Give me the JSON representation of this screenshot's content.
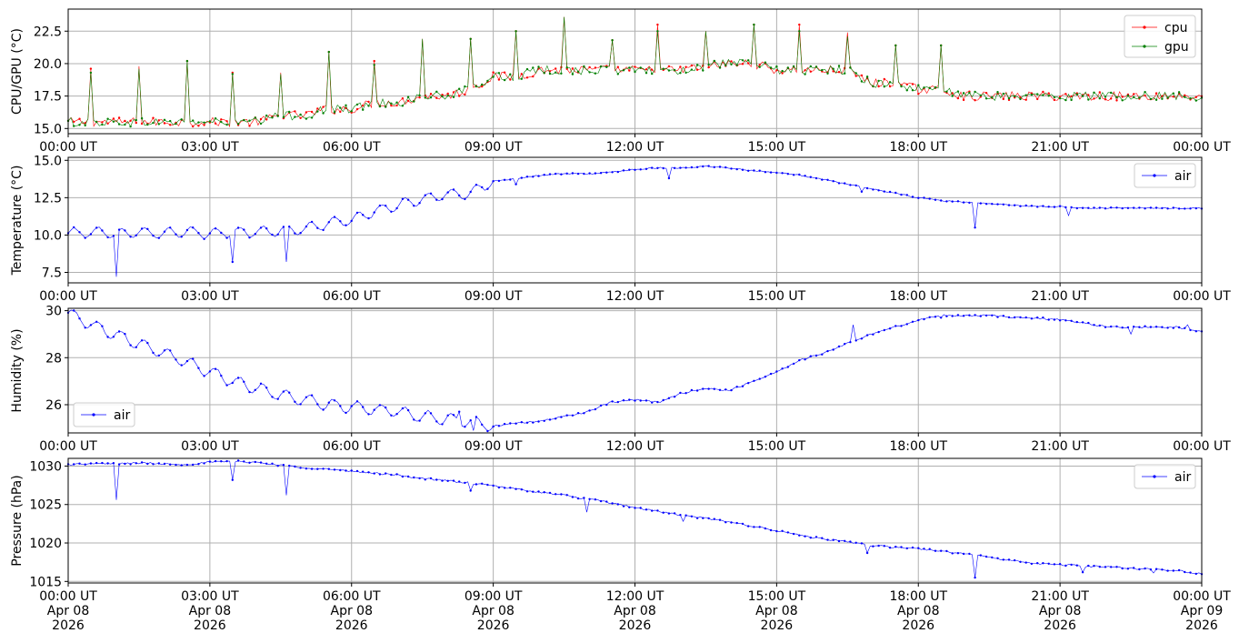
{
  "chart_data": [
    {
      "type": "line",
      "ylabel": "CPU/GPU (°C)",
      "xlim": [
        0,
        24
      ],
      "ylim": [
        14.6,
        24.2
      ],
      "yticks": [
        15.0,
        17.5,
        20.0,
        22.5
      ],
      "ytick_labels": [
        "15.0",
        "17.5",
        "20.0",
        "22.5"
      ],
      "xtick_labels": [
        "00:00 UT",
        "03:00 UT",
        "06:00 UT",
        "09:00 UT",
        "12:00 UT",
        "15:00 UT",
        "18:00 UT",
        "21:00 UT",
        "00:00 UT"
      ],
      "grid": true,
      "legend_position": "upper right",
      "series": [
        {
          "name": "cpu",
          "color": "#ff0000",
          "x": [
            0,
            0.5,
            1,
            1.5,
            2,
            2.5,
            3,
            3.5,
            4,
            4.5,
            5,
            5.5,
            6,
            6.5,
            7,
            7.5,
            8,
            8.5,
            9,
            9.5,
            10,
            10.5,
            11,
            11.5,
            12,
            12.5,
            13,
            13.5,
            14,
            14.5,
            15,
            15.5,
            16,
            16.5,
            17,
            17.5,
            18,
            18.5,
            19,
            19.5,
            20,
            20.5,
            21,
            21.5,
            22,
            22.5,
            23,
            23.5,
            24
          ],
          "y": [
            15.5,
            15.5,
            15.5,
            15.5,
            15.5,
            15.5,
            15.5,
            15.5,
            15.5,
            16.0,
            16.0,
            16.5,
            16.5,
            17.0,
            17.0,
            17.5,
            17.5,
            18.0,
            19.0,
            19.0,
            19.5,
            19.5,
            19.5,
            19.5,
            19.5,
            19.5,
            19.5,
            19.8,
            20.0,
            20.0,
            19.5,
            19.5,
            19.5,
            19.5,
            18.5,
            18.5,
            18.0,
            18.0,
            17.5,
            17.5,
            17.5,
            17.5,
            17.5,
            17.5,
            17.5,
            17.5,
            17.5,
            17.5,
            17.5
          ],
          "spikes": [
            [
              0.5,
              19.6
            ],
            [
              1.5,
              19.8
            ],
            [
              2.5,
              20.2
            ],
            [
              3.5,
              19.3
            ],
            [
              4.5,
              19.3
            ],
            [
              5.5,
              20.9
            ],
            [
              6.5,
              20.2
            ],
            [
              7.5,
              21.9
            ],
            [
              8.5,
              21.9
            ],
            [
              9.5,
              22.5
            ],
            [
              10.5,
              23.6
            ],
            [
              11.5,
              21.8
            ],
            [
              12.5,
              23.0
            ],
            [
              13.5,
              22.5
            ],
            [
              14.5,
              23.0
            ],
            [
              15.5,
              23.0
            ],
            [
              16.5,
              22.4
            ],
            [
              17.5,
              21.4
            ],
            [
              18.5,
              21.4
            ]
          ]
        },
        {
          "name": "gpu",
          "color": "#008000",
          "x": [
            0,
            0.5,
            1,
            1.5,
            2,
            2.5,
            3,
            3.5,
            4,
            4.5,
            5,
            5.5,
            6,
            6.5,
            7,
            7.5,
            8,
            8.5,
            9,
            9.5,
            10,
            10.5,
            11,
            11.5,
            12,
            12.5,
            13,
            13.5,
            14,
            14.5,
            15,
            15.5,
            16,
            16.5,
            17,
            17.5,
            18,
            18.5,
            19,
            19.5,
            20,
            20.5,
            21,
            21.5,
            22,
            22.5,
            23,
            23.5,
            24
          ],
          "y": [
            15.5,
            15.5,
            15.5,
            15.5,
            15.5,
            15.5,
            15.5,
            15.5,
            15.5,
            16.0,
            16.0,
            16.5,
            16.5,
            17.0,
            17.0,
            17.5,
            17.5,
            18.0,
            19.0,
            19.0,
            19.5,
            19.5,
            19.5,
            19.5,
            19.5,
            19.5,
            19.5,
            19.8,
            20.0,
            20.0,
            19.5,
            19.5,
            19.5,
            19.5,
            18.5,
            18.5,
            18.0,
            18.0,
            17.5,
            17.5,
            17.5,
            17.5,
            17.5,
            17.5,
            17.5,
            17.5,
            17.5,
            17.5,
            17.5
          ],
          "spikes": [
            [
              0.5,
              19.3
            ],
            [
              1.5,
              19.6
            ],
            [
              2.5,
              20.2
            ],
            [
              3.5,
              19.2
            ],
            [
              4.5,
              19.2
            ],
            [
              5.5,
              20.9
            ],
            [
              6.5,
              19.9
            ],
            [
              7.5,
              21.9
            ],
            [
              8.5,
              21.9
            ],
            [
              9.5,
              22.5
            ],
            [
              10.5,
              23.6
            ],
            [
              11.5,
              21.8
            ],
            [
              12.5,
              22.5
            ],
            [
              13.5,
              22.5
            ],
            [
              14.5,
              23.0
            ],
            [
              15.5,
              22.5
            ],
            [
              16.5,
              22.1
            ],
            [
              17.5,
              21.4
            ],
            [
              18.5,
              21.4
            ]
          ]
        }
      ]
    },
    {
      "type": "line",
      "ylabel": "Temperature (°C)",
      "xlim": [
        0,
        24
      ],
      "ylim": [
        6.8,
        15.2
      ],
      "yticks": [
        7.5,
        10.0,
        12.5,
        15.0
      ],
      "ytick_labels": [
        "7.5",
        "10.0",
        "12.5",
        "15.0"
      ],
      "xtick_labels": [
        "00:00 UT",
        "03:00 UT",
        "06:00 UT",
        "09:00 UT",
        "12:00 UT",
        "15:00 UT",
        "18:00 UT",
        "21:00 UT",
        "00:00 UT"
      ],
      "grid": true,
      "legend_position": "upper right",
      "series": [
        {
          "name": "air",
          "color": "#0000ff",
          "x": [
            0,
            0.5,
            1,
            1.5,
            2,
            2.5,
            3,
            3.5,
            4,
            4.5,
            5,
            5.5,
            6,
            6.5,
            7,
            7.5,
            8,
            8.5,
            9,
            9.5,
            10,
            10.5,
            11,
            11.5,
            12,
            12.5,
            13,
            13.5,
            14,
            14.5,
            15,
            15.5,
            16,
            16.5,
            17,
            17.5,
            18,
            18.5,
            19,
            19.5,
            20,
            20.5,
            21,
            21.5,
            22,
            22.5,
            23,
            23.5,
            24
          ],
          "y": [
            10.1,
            10.2,
            10.1,
            10.2,
            10.1,
            10.2,
            10.1,
            10.2,
            10.2,
            10.3,
            10.4,
            10.8,
            11.0,
            11.6,
            12.0,
            12.4,
            12.7,
            12.8,
            13.6,
            13.8,
            14.0,
            14.1,
            14.1,
            14.2,
            14.4,
            14.5,
            14.5,
            14.6,
            14.5,
            14.3,
            14.2,
            14.0,
            13.7,
            13.4,
            13.1,
            12.8,
            12.5,
            12.3,
            12.2,
            12.1,
            12.0,
            11.9,
            11.9,
            11.8,
            11.8,
            11.8,
            11.8,
            11.8,
            11.8
          ],
          "spikes": [
            [
              1.0,
              7.2
            ],
            [
              3.5,
              8.2
            ],
            [
              4.6,
              8.2
            ],
            [
              9.5,
              13.4
            ],
            [
              12.7,
              13.8
            ],
            [
              16.8,
              12.9
            ],
            [
              19.2,
              10.5
            ],
            [
              21.2,
              11.3
            ]
          ]
        }
      ]
    },
    {
      "type": "line",
      "ylabel": "Humidity (%)",
      "xlim": [
        0,
        24
      ],
      "ylim": [
        24.8,
        30.1
      ],
      "yticks": [
        26,
        28,
        30
      ],
      "ytick_labels": [
        "26",
        "28",
        "30"
      ],
      "xtick_labels": [
        "00:00 UT",
        "03:00 UT",
        "06:00 UT",
        "09:00 UT",
        "12:00 UT",
        "15:00 UT",
        "18:00 UT",
        "21:00 UT",
        "00:00 UT"
      ],
      "grid": true,
      "legend_position": "lower left",
      "series": [
        {
          "name": "air",
          "color": "#0000ff",
          "x": [
            0,
            0.5,
            1,
            1.5,
            2,
            2.5,
            3,
            3.5,
            4,
            4.5,
            5,
            5.5,
            6,
            6.5,
            7,
            7.5,
            8,
            8.5,
            9,
            9.5,
            10,
            10.5,
            11,
            11.5,
            12,
            12.5,
            13,
            13.5,
            14,
            14.5,
            15,
            15.5,
            16,
            16.5,
            17,
            17.5,
            18,
            18.5,
            19,
            19.5,
            20,
            20.5,
            21,
            21.5,
            22,
            22.5,
            23,
            23.5,
            24
          ],
          "y": [
            29.9,
            29.4,
            29.0,
            28.6,
            28.2,
            27.8,
            27.4,
            27.0,
            26.7,
            26.4,
            26.2,
            26.0,
            25.9,
            25.8,
            25.7,
            25.5,
            25.4,
            25.3,
            25.1,
            25.2,
            25.3,
            25.5,
            25.7,
            26.1,
            26.2,
            26.1,
            26.5,
            26.7,
            26.6,
            27.0,
            27.4,
            27.9,
            28.2,
            28.6,
            29.0,
            29.3,
            29.6,
            29.8,
            29.8,
            29.8,
            29.7,
            29.7,
            29.6,
            29.5,
            29.3,
            29.3,
            29.3,
            29.3,
            29.1
          ],
          "spikes": [
            [
              8.3,
              25.7
            ],
            [
              8.6,
              24.9
            ],
            [
              16.6,
              29.4
            ],
            [
              18.5,
              29.7
            ],
            [
              22.5,
              29.0
            ],
            [
              23.7,
              29.4
            ]
          ]
        }
      ]
    },
    {
      "type": "line",
      "ylabel": "Pressure (hPa)",
      "xlim": [
        0,
        24
      ],
      "ylim": [
        1014.8,
        1031.0
      ],
      "yticks": [
        1015,
        1020,
        1025,
        1030
      ],
      "ytick_labels": [
        "1015",
        "1020",
        "1025",
        "1030"
      ],
      "xtick_labels": [
        "00:00 UT\nApr 08\n2026",
        "03:00 UT\nApr 08\n2026",
        "06:00 UT\nApr 08\n2026",
        "09:00 UT\nApr 08\n2026",
        "12:00 UT\nApr 08\n2026",
        "15:00 UT\nApr 08\n2026",
        "18:00 UT\nApr 08\n2026",
        "21:00 UT\nApr 08\n2026",
        "00:00 UT\nApr 09\n2026"
      ],
      "grid": true,
      "legend_position": "upper right",
      "series": [
        {
          "name": "air",
          "color": "#0000ff",
          "x": [
            0,
            0.5,
            1,
            1.5,
            2,
            2.5,
            3,
            3.5,
            4,
            4.5,
            5,
            5.5,
            6,
            6.5,
            7,
            7.5,
            8,
            8.5,
            9,
            9.5,
            10,
            10.5,
            11,
            11.5,
            12,
            12.5,
            13,
            13.5,
            14,
            14.5,
            15,
            15.5,
            16,
            16.5,
            17,
            17.5,
            18,
            18.5,
            19,
            19.5,
            20,
            20.5,
            21,
            21.5,
            22,
            22.5,
            23,
            23.5,
            24
          ],
          "y": [
            1030.2,
            1030.3,
            1030.3,
            1030.4,
            1030.3,
            1030.2,
            1030.5,
            1030.6,
            1030.5,
            1030.1,
            1029.8,
            1029.6,
            1029.3,
            1029.1,
            1028.8,
            1028.4,
            1028.1,
            1027.8,
            1027.4,
            1027.0,
            1026.6,
            1026.2,
            1025.7,
            1025.2,
            1024.6,
            1024.1,
            1023.6,
            1023.2,
            1022.7,
            1022.2,
            1021.6,
            1021.0,
            1020.5,
            1020.1,
            1019.7,
            1019.4,
            1019.3,
            1018.9,
            1018.6,
            1018.1,
            1017.7,
            1017.3,
            1017.2,
            1017.0,
            1016.9,
            1016.7,
            1016.6,
            1016.4,
            1016.0
          ],
          "spikes": [
            [
              1.0,
              1025.6
            ],
            [
              3.5,
              1028.2
            ],
            [
              4.6,
              1026.2
            ],
            [
              8.5,
              1026.8
            ],
            [
              11.0,
              1024.0
            ],
            [
              13.0,
              1022.8
            ],
            [
              16.9,
              1018.7
            ],
            [
              19.2,
              1015.5
            ],
            [
              21.5,
              1016.2
            ],
            [
              23.0,
              1016.1
            ]
          ]
        }
      ]
    }
  ]
}
